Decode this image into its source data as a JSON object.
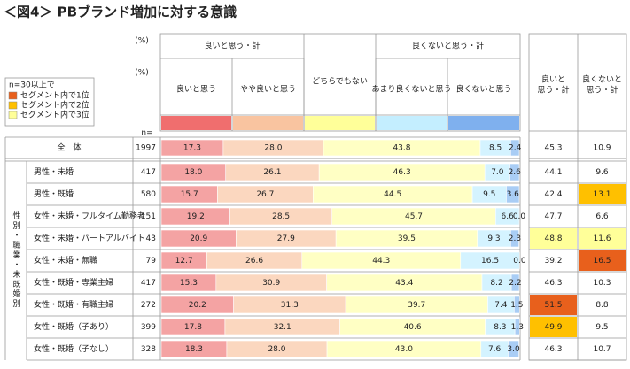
{
  "title": "＜図4＞ PBブランド増加に対する意識",
  "chart_data": {
    "type": "bar",
    "orientation": "horizontal",
    "stacked": true,
    "unit_labels": [
      "(%)",
      "(%)"
    ],
    "n_label": "n=",
    "groups": [
      "良いと思う・計",
      "良くないと思う・計"
    ],
    "side_label": "性別・職業・未既婚別",
    "categories": [
      "全　体",
      "男性・未婚",
      "男性・既婚",
      "女性・未婚・フルタイム勤務者",
      "女性・未婚・パートアルバイト",
      "女性・未婚・無職",
      "女性・既婚・専業主婦",
      "女性・既婚・有職主婦",
      "女性・既婚（子あり）",
      "女性・既婚（子なし）"
    ],
    "n": [
      1997,
      417,
      580,
      151,
      43,
      79,
      417,
      272,
      399,
      328
    ],
    "xlim": [
      0,
      100
    ],
    "series": [
      {
        "name": "良いと思う",
        "color": "#f4a3a3",
        "swatch": "#f06e6e",
        "values": [
          17.3,
          18.0,
          15.7,
          19.2,
          20.9,
          12.7,
          15.3,
          20.2,
          17.8,
          18.3
        ],
        "value_labels": [
          "17.3",
          "18.0",
          "15.7",
          "19.2",
          "20.9",
          "12.7",
          "15.3",
          "20.2",
          "17.8",
          "18.3"
        ]
      },
      {
        "name": "やや良いと思う",
        "color": "#fbd7bf",
        "swatch": "#f9c4a0",
        "values": [
          28.0,
          26.1,
          26.7,
          28.5,
          27.9,
          26.6,
          30.9,
          31.3,
          32.1,
          28.0
        ],
        "value_labels": [
          "28.0",
          "26.1",
          "26.7",
          "28.5",
          "27.9",
          "26.6",
          "30.9",
          "31.3",
          "32.1",
          "28.0"
        ]
      },
      {
        "name": "どちらでもない",
        "color": "#ffffc4",
        "swatch": "#ffff99",
        "values": [
          43.8,
          46.3,
          44.5,
          45.7,
          39.5,
          44.3,
          43.4,
          39.7,
          40.6,
          43.0
        ],
        "value_labels": [
          "43.8",
          "46.3",
          "44.5",
          "45.7",
          "39.5",
          "44.3",
          "43.4",
          "39.7",
          "40.6",
          "43.0"
        ]
      },
      {
        "name": "あまり良くないと思う",
        "color": "#d4f3ff",
        "swatch": "#c4eeff",
        "values": [
          8.5,
          7.0,
          9.5,
          6.6,
          9.3,
          16.5,
          8.2,
          7.4,
          8.3,
          7.6
        ],
        "value_labels": [
          "8.5",
          "7.0",
          "9.5",
          "6.6",
          "9.3",
          "16.5",
          "8.2",
          "7.4",
          "8.3",
          "7.6"
        ]
      },
      {
        "name": "良くないと思う",
        "color": "#a9cdf5",
        "swatch": "#7fb0ee",
        "values": [
          2.4,
          2.6,
          3.6,
          0.0,
          2.3,
          0.0,
          2.2,
          1.5,
          1.3,
          3.0
        ],
        "value_labels": [
          "2.4",
          "2.6",
          "3.6",
          "0.0",
          "2.3",
          "0.0",
          "2.2",
          "1.5",
          "1.3",
          "3.0"
        ]
      }
    ],
    "summary": [
      {
        "name": [
          "良いと",
          "思う・計"
        ],
        "values": [
          45.3,
          44.1,
          42.4,
          47.7,
          48.8,
          39.2,
          46.3,
          51.5,
          49.9,
          46.3
        ],
        "ranks": [
          null,
          null,
          null,
          null,
          3,
          null,
          null,
          1,
          2,
          null
        ]
      },
      {
        "name": [
          "良くないと",
          "思う・計"
        ],
        "values": [
          10.9,
          9.6,
          13.1,
          6.6,
          11.6,
          16.5,
          10.3,
          8.8,
          9.5,
          10.7
        ],
        "ranks": [
          null,
          null,
          2,
          null,
          3,
          1,
          null,
          null,
          null,
          null
        ]
      }
    ],
    "legend": {
      "title": "n=30以上で",
      "items": [
        {
          "label": "セグメント内で1位",
          "color": "#e8601c"
        },
        {
          "label": "セグメント内で2位",
          "color": "#ffc000"
        },
        {
          "label": "セグメント内で3位",
          "color": "#ffff99"
        }
      ]
    }
  }
}
